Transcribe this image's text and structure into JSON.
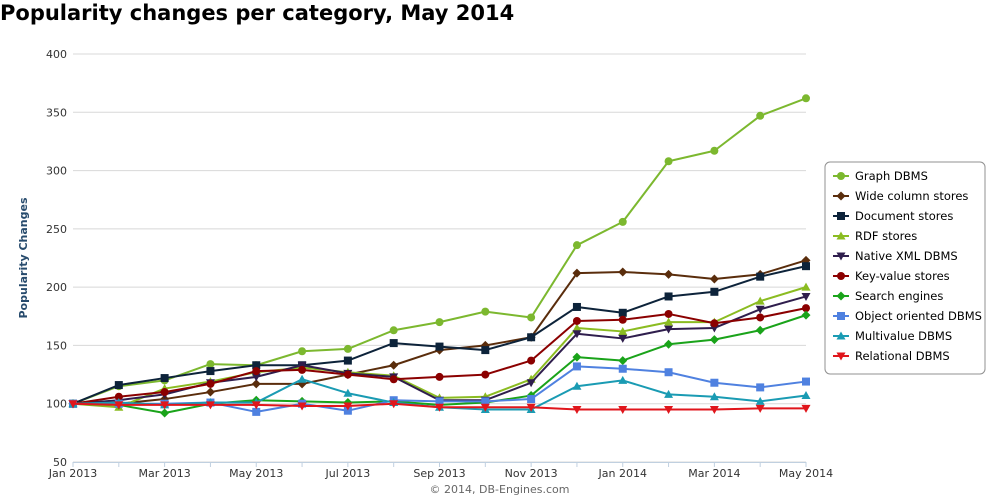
{
  "chart_data": {
    "type": "line",
    "title": "Popularity changes per category, May 2014",
    "ylabel": "Popularity Changes",
    "xlabel": "",
    "credit": "© 2014, DB-Engines.com",
    "ylim": [
      50,
      400
    ],
    "yticks": [
      50,
      100,
      150,
      200,
      250,
      300,
      350,
      400
    ],
    "x_tick_labels": [
      "Jan 2013",
      "Mar 2013",
      "May 2013",
      "Jul 2013",
      "Sep 2013",
      "Nov 2013",
      "Jan 2014",
      "Mar 2014",
      "May 2014"
    ],
    "categories": [
      "Jan 2013",
      "Feb 2013",
      "Mar 2013",
      "Apr 2013",
      "May 2013",
      "Jun 2013",
      "Jul 2013",
      "Aug 2013",
      "Sep 2013",
      "Oct 2013",
      "Nov 2013",
      "Dec 2013",
      "Jan 2014",
      "Feb 2014",
      "Mar 2014",
      "Apr 2014",
      "May 2014"
    ],
    "grid": true,
    "legend_position": "right",
    "series": [
      {
        "name": "Graph DBMS",
        "color": "#7cb82f",
        "marker": "circle",
        "values": [
          100,
          115,
          120,
          134,
          133,
          145,
          147,
          163,
          170,
          179,
          174,
          236,
          256,
          308,
          317,
          347,
          362
        ]
      },
      {
        "name": "Wide column stores",
        "color": "#5a2d0c",
        "marker": "diamond",
        "values": [
          100,
          100,
          104,
          110,
          117,
          117,
          125,
          133,
          146,
          150,
          157,
          212,
          213,
          211,
          207,
          211,
          223
        ]
      },
      {
        "name": "Document stores",
        "color": "#0d233a",
        "marker": "square",
        "values": [
          100,
          116,
          122,
          128,
          133,
          133,
          137,
          152,
          149,
          146,
          157,
          183,
          178,
          192,
          196,
          209,
          218
        ]
      },
      {
        "name": "RDF stores",
        "color": "#8bbc21",
        "marker": "triangle",
        "values": [
          100,
          97,
          113,
          119,
          127,
          131,
          127,
          124,
          105,
          106,
          121,
          165,
          162,
          170,
          170,
          188,
          200
        ]
      },
      {
        "name": "Native XML DBMS",
        "color": "#2f1e4d",
        "marker": "triangle-down",
        "values": [
          100,
          103,
          108,
          118,
          123,
          133,
          126,
          123,
          103,
          103,
          118,
          160,
          156,
          164,
          165,
          181,
          192
        ]
      },
      {
        "name": "Key-value stores",
        "color": "#8b0000",
        "marker": "circle",
        "values": [
          100,
          106,
          110,
          117,
          128,
          129,
          125,
          121,
          123,
          125,
          137,
          171,
          172,
          177,
          169,
          174,
          182
        ]
      },
      {
        "name": "Search engines",
        "color": "#1aa31a",
        "marker": "diamond",
        "values": [
          100,
          99,
          92,
          100,
          103,
          102,
          101,
          102,
          99,
          101,
          107,
          140,
          137,
          151,
          155,
          163,
          176
        ]
      },
      {
        "name": "Object oriented DBMS",
        "color": "#4f81e0",
        "marker": "square",
        "values": [
          100,
          100,
          100,
          101,
          93,
          100,
          94,
          103,
          102,
          102,
          104,
          132,
          130,
          127,
          118,
          114,
          119
        ]
      },
      {
        "name": "Multivalue DBMS",
        "color": "#1a9bb3",
        "marker": "triangle",
        "values": [
          100,
          101,
          99,
          101,
          101,
          121,
          109,
          101,
          97,
          95,
          95,
          115,
          120,
          108,
          106,
          102,
          107
        ]
      },
      {
        "name": "Relational DBMS",
        "color": "#e0161c",
        "marker": "triangle-down",
        "values": [
          100,
          99,
          99,
          99,
          99,
          98,
          98,
          100,
          97,
          97,
          97,
          95,
          95,
          95,
          95,
          96,
          96
        ]
      }
    ]
  }
}
